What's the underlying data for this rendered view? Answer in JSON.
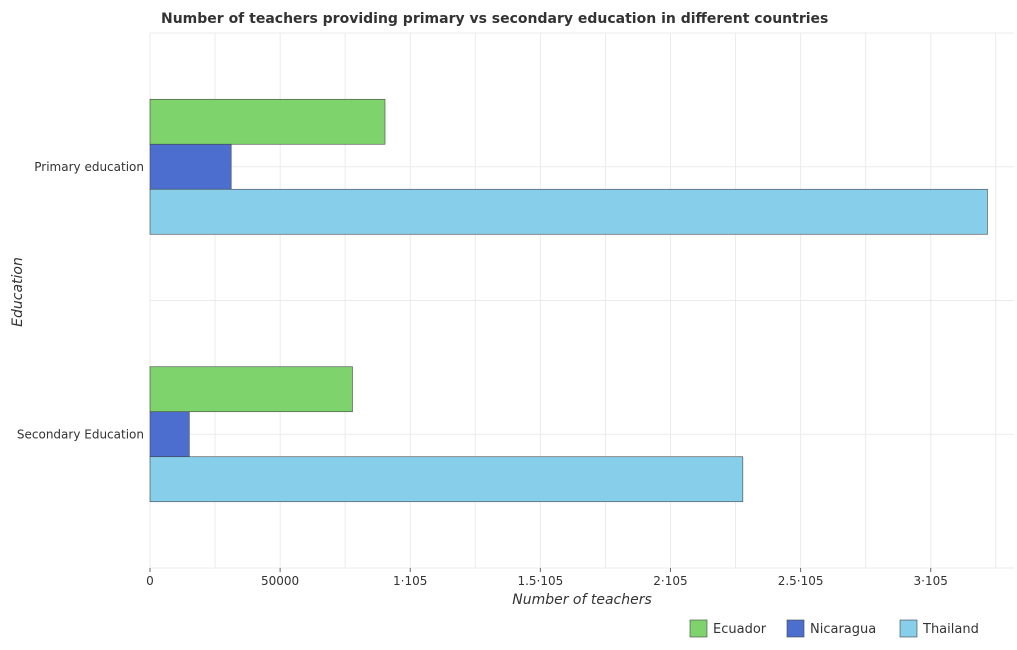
{
  "chart_data": {
    "type": "bar",
    "orientation": "horizontal",
    "title": "Number of teachers providing primary vs secondary education in different countries",
    "xlabel": "Number of teachers",
    "ylabel": "Education",
    "categories": [
      "Primary education",
      "Secondary Education"
    ],
    "series": [
      {
        "name": "Ecuador",
        "color": "#7ed36d",
        "values": [
          90300,
          77800
        ]
      },
      {
        "name": "Nicaragua",
        "color": "#4c6fcf",
        "values": [
          31200,
          15100
        ]
      },
      {
        "name": "Thailand",
        "color": "#87ceeb",
        "values": [
          321800,
          227800
        ]
      }
    ],
    "xlim": [
      0,
      332000
    ],
    "xticks": [
      0,
      50000,
      100000,
      150000,
      200000,
      250000,
      300000
    ],
    "xtick_labels": [
      "0",
      "50000",
      "1·105",
      "1.5·105",
      "2·105",
      "2.5·105",
      "3·105"
    ],
    "grid": true,
    "legend_position": "bottom-right"
  }
}
